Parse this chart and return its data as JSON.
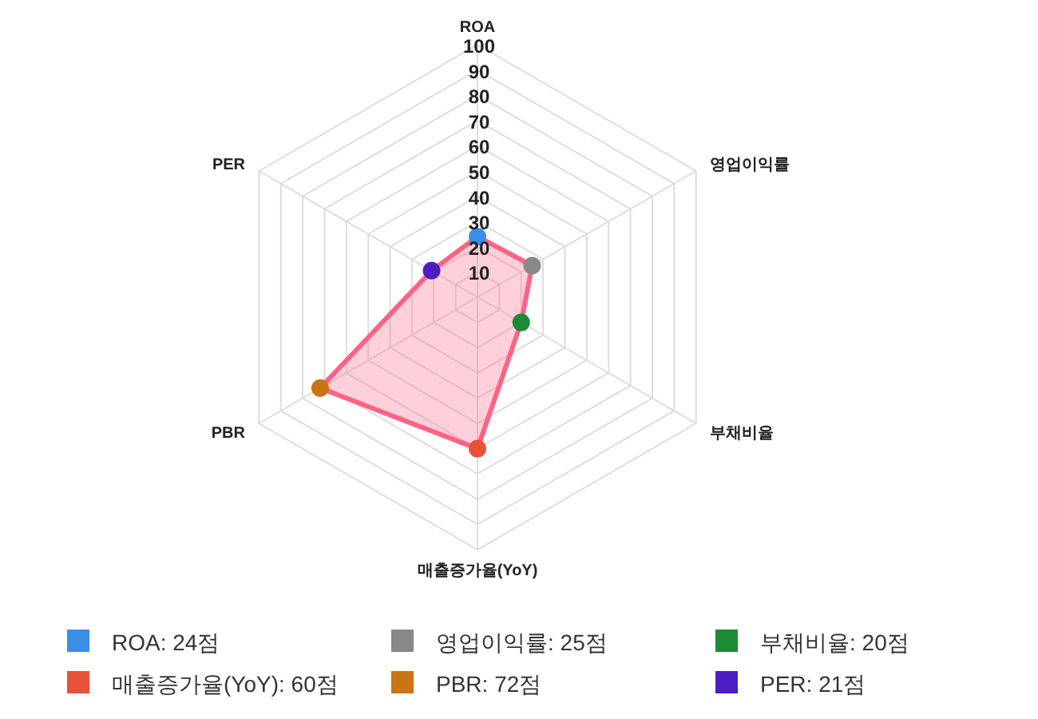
{
  "chart_data": {
    "type": "radar",
    "categories": [
      "ROA",
      "영업이익률",
      "부채비율",
      "매출증가율(YoY)",
      "PBR",
      "PER"
    ],
    "ylim": [
      0,
      100
    ],
    "yticks": [
      10,
      20,
      30,
      40,
      50,
      60,
      70,
      80,
      90,
      100
    ],
    "grid": true,
    "marker": "circle",
    "series": [
      {
        "color": "#ff6384",
        "values": [
          24,
          25,
          20,
          60,
          72,
          21
        ],
        "colors": [
          "#3a8ee6",
          "#888888",
          "#1a8a35",
          "#e8503a",
          "#cc7314",
          "#4a1ec0"
        ]
      }
    ],
    "annotations": [
      "ROA: 24점",
      "영업이익률: 25점",
      "부채비율: 20점",
      "매출증가율(YoY): 60점",
      "PBR: 72점",
      "PER: 21점"
    ]
  }
}
